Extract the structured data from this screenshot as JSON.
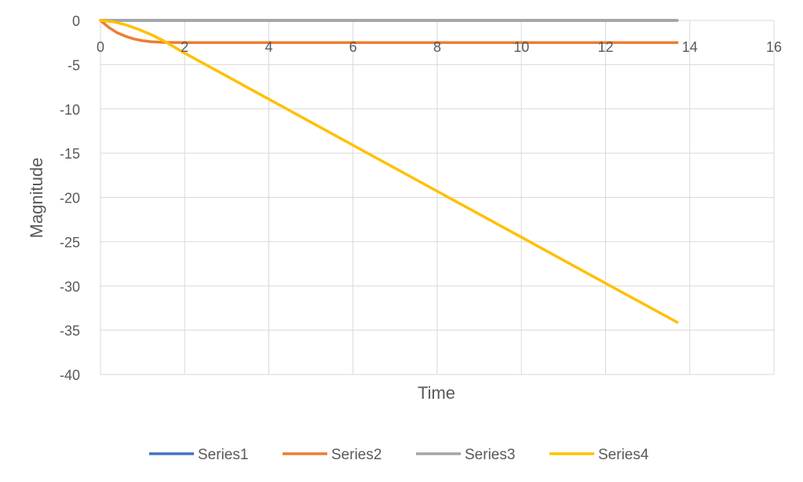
{
  "chart_data": {
    "type": "line",
    "title": "",
    "xlabel": "Time",
    "ylabel": "Magnitude",
    "xlim": [
      0,
      16
    ],
    "ylim": [
      -40,
      0
    ],
    "x_ticks": [
      0,
      2,
      4,
      6,
      8,
      10,
      12,
      14,
      16
    ],
    "y_ticks": [
      0,
      -5,
      -10,
      -15,
      -20,
      -25,
      -30,
      -35,
      -40
    ],
    "grid": true,
    "legend_position": "bottom",
    "series": [
      {
        "name": "Series1",
        "color": "#4472C4",
        "x": [
          0,
          13.7
        ],
        "y": [
          0,
          0
        ]
      },
      {
        "name": "Series2",
        "color": "#ED7D31",
        "x": [
          0,
          0.2,
          0.4,
          0.6,
          0.8,
          1.0,
          1.2,
          1.5,
          2.0,
          3.0,
          4.0,
          6.0,
          8.0,
          10.0,
          12.0,
          13.7
        ],
        "y": [
          0,
          -0.8,
          -1.4,
          -1.8,
          -2.1,
          -2.3,
          -2.4,
          -2.48,
          -2.5,
          -2.5,
          -2.5,
          -2.5,
          -2.5,
          -2.5,
          -2.5,
          -2.5
        ]
      },
      {
        "name": "Series3",
        "color": "#A5A5A5",
        "x": [
          0,
          13.7
        ],
        "y": [
          0,
          0
        ]
      },
      {
        "name": "Series4",
        "color": "#FFC000",
        "x": [
          0,
          0.3,
          0.6,
          0.9,
          1.2,
          1.5,
          2.0,
          4.0,
          6.0,
          8.0,
          10.0,
          12.0,
          13.7
        ],
        "y": [
          0,
          -0.15,
          -0.5,
          -1.0,
          -1.6,
          -2.3,
          -3.7,
          -8.9,
          -14.1,
          -19.3,
          -24.5,
          -29.7,
          -34.1
        ]
      }
    ]
  }
}
